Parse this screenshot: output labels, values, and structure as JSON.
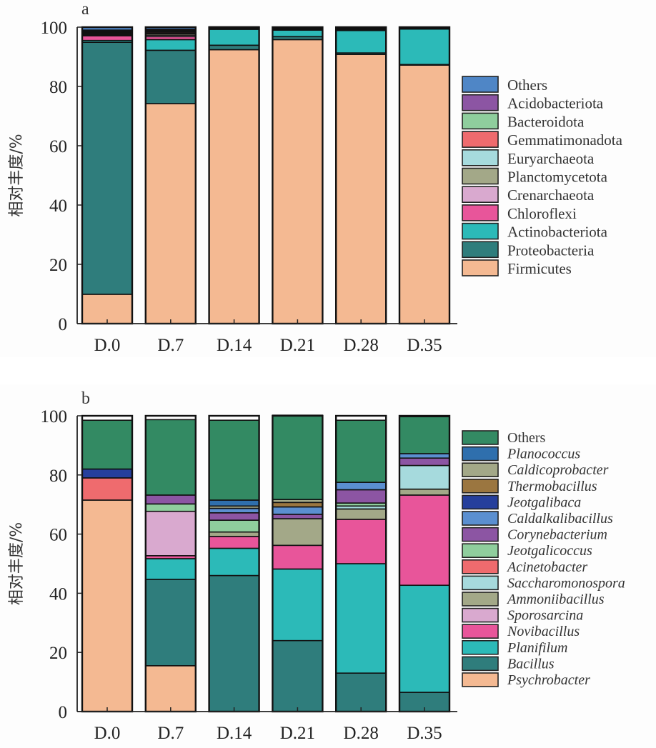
{
  "chart_data": [
    {
      "type": "bar",
      "stacked": true,
      "panel_label": "a",
      "title": "",
      "xlabel": "",
      "ylabel": "相对丰度/%",
      "ylim": [
        0,
        100
      ],
      "yticks": [
        0,
        20,
        40,
        60,
        80,
        100
      ],
      "grid": false,
      "legend_position": "right",
      "legend_italic": false,
      "categories": [
        "D.0",
        "D.7",
        "D.14",
        "D.21",
        "D.28",
        "D.35"
      ],
      "series": [
        {
          "name": "Firmicutes",
          "color": "#f4b992",
          "values": [
            9.9,
            74.2,
            92.4,
            95.8,
            90.8,
            87.2
          ]
        },
        {
          "name": "Proteobacteria",
          "color": "#2f7d7c",
          "values": [
            85.0,
            18.0,
            1.5,
            1.0,
            0.5,
            0.2
          ]
        },
        {
          "name": "Actinobacteriota",
          "color": "#2cbab8",
          "values": [
            0.6,
            3.6,
            5.4,
            2.2,
            7.6,
            12.0
          ]
        },
        {
          "name": "Chloroflexi",
          "color": "#e8559a",
          "values": [
            1.6,
            1.0,
            0.1,
            0.2,
            0.1,
            0.1
          ]
        },
        {
          "name": "Crenarchaeota",
          "color": "#d9a9cf",
          "values": [
            0.3,
            0.5,
            0.1,
            0.2,
            0.1,
            0.1
          ]
        },
        {
          "name": "Planctomycetota",
          "color": "#a3a888",
          "values": [
            0.4,
            0.5,
            0.1,
            0.1,
            0.2,
            0.1
          ]
        },
        {
          "name": "Euryarchaeota",
          "color": "#a6dadd",
          "values": [
            0.2,
            0.3,
            0.1,
            0.1,
            0.1,
            0.1
          ]
        },
        {
          "name": "Gemmatimonadota",
          "color": "#ef6b6e",
          "values": [
            0.3,
            0.4,
            0.1,
            0.1,
            0.1,
            0.05
          ]
        },
        {
          "name": "Bacteroidota",
          "color": "#8fce9d",
          "values": [
            0.3,
            0.4,
            0.1,
            0.1,
            0.1,
            0.05
          ]
        },
        {
          "name": "Acidobacteriota",
          "color": "#8c55a3",
          "values": [
            0.4,
            0.4,
            0.1,
            0.1,
            0.1,
            0.05
          ]
        },
        {
          "name": "Others",
          "color": "#4f86c6",
          "values": [
            1.0,
            0.7,
            0.1,
            0.1,
            0.1,
            0.05
          ]
        }
      ]
    },
    {
      "type": "bar",
      "stacked": true,
      "panel_label": "b",
      "title": "",
      "xlabel": "",
      "ylabel": "相对丰度/%",
      "ylim": [
        0,
        100
      ],
      "yticks": [
        0,
        20,
        40,
        60,
        80,
        100
      ],
      "grid": false,
      "legend_position": "right",
      "legend_italic": true,
      "categories": [
        "D.0",
        "D.7",
        "D.14",
        "D.21",
        "D.28",
        "D.35"
      ],
      "series": [
        {
          "name": "Psychrobacter",
          "color": "#f4b992",
          "values": [
            71.5,
            15.5,
            0.0,
            0.0,
            0.0,
            0.0
          ]
        },
        {
          "name": "Bacillus",
          "color": "#2f7d7c",
          "values": [
            0.0,
            29.2,
            46.0,
            24.0,
            13.0,
            6.5
          ]
        },
        {
          "name": "Planifilum",
          "color": "#2cbab8",
          "values": [
            0.0,
            7.0,
            9.2,
            24.2,
            37.0,
            36.2
          ]
        },
        {
          "name": "Novibacillus",
          "color": "#e8559a",
          "values": [
            0.0,
            1.0,
            4.0,
            8.0,
            15.0,
            30.5
          ]
        },
        {
          "name": "Sporosarcina",
          "color": "#d9a9cf",
          "values": [
            0.0,
            15.0,
            0.0,
            0.0,
            0.0,
            0.0
          ]
        },
        {
          "name": "Ammoniibacillus",
          "color": "#a3a888",
          "values": [
            0.0,
            0.0,
            1.5,
            9.0,
            3.5,
            2.0
          ]
        },
        {
          "name": "Saccharomonospora",
          "color": "#a6dadd",
          "values": [
            0.0,
            0.0,
            0.0,
            0.0,
            1.0,
            8.0
          ]
        },
        {
          "name": "Acinetobacter",
          "color": "#ef6b6e",
          "values": [
            7.5,
            0.0,
            0.0,
            0.0,
            0.0,
            0.0
          ]
        },
        {
          "name": "Jeotgalicoccus",
          "color": "#8fce9d",
          "values": [
            0.0,
            2.5,
            4.0,
            0.0,
            1.0,
            0.0
          ]
        },
        {
          "name": "Corynebacterium",
          "color": "#8c55a3",
          "values": [
            0.0,
            3.0,
            2.5,
            1.5,
            4.5,
            2.5
          ]
        },
        {
          "name": "Caldalkalibacillus",
          "color": "#5b8fd0",
          "values": [
            0.0,
            0.0,
            1.5,
            2.5,
            2.5,
            1.5
          ]
        },
        {
          "name": "Jeotgalibaca",
          "color": "#263f9c",
          "values": [
            3.0,
            0.0,
            0.0,
            0.0,
            0.0,
            0.0
          ]
        },
        {
          "name": "Thermobacillus",
          "color": "#9b7640",
          "values": [
            0.0,
            0.0,
            0.0,
            1.5,
            0.0,
            0.0
          ]
        },
        {
          "name": "Caldicoprobacter",
          "color": "#a3a888",
          "values": [
            0.0,
            0.0,
            0.8,
            1.0,
            0.0,
            0.0
          ]
        },
        {
          "name": "Planococcus",
          "color": "#2f6fad",
          "values": [
            0.0,
            0.0,
            2.0,
            0.0,
            0.0,
            0.0
          ]
        },
        {
          "name": "Others",
          "color": "#338a63",
          "values": [
            16.5,
            25.5,
            27.0,
            28.5,
            21.0,
            12.5
          ]
        }
      ]
    }
  ]
}
